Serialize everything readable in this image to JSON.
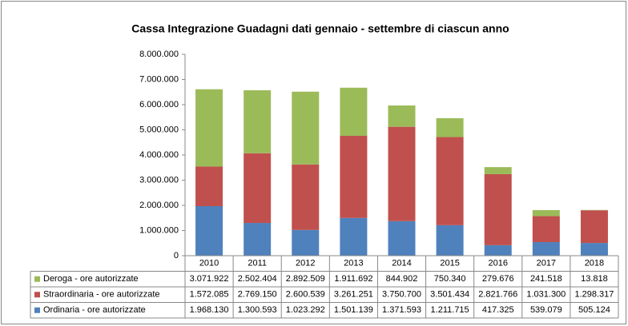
{
  "chart_data": {
    "type": "bar",
    "stacked": true,
    "title": "Cassa Integrazione Guadagni  dati gennaio  - settembre di ciascun anno",
    "categories": [
      "2010",
      "2011",
      "2012",
      "2013",
      "2014",
      "2015",
      "2016",
      "2017",
      "2018"
    ],
    "series": [
      {
        "name": "Ordinaria - ore autorizzate",
        "color": "#4f81bd",
        "values": [
          1968130,
          1300593,
          1023292,
          1501139,
          1371593,
          1211715,
          417325,
          539079,
          505124
        ],
        "value_labels": [
          "1.968.130",
          "1.300.593",
          "1.023.292",
          "1.501.139",
          "1.371.593",
          "1.211.715",
          "417.325",
          "539.079",
          "505.124"
        ]
      },
      {
        "name": "Straordinaria - ore autorizzate",
        "color": "#c0504d",
        "values": [
          1572085,
          2769150,
          2600539,
          3261251,
          3750700,
          3501434,
          2821766,
          1031300,
          1298317
        ],
        "value_labels": [
          "1.572.085",
          "2.769.150",
          "2.600.539",
          "3.261.251",
          "3.750.700",
          "3.501.434",
          "2.821.766",
          "1.031.300",
          "1.298.317"
        ]
      },
      {
        "name": "Deroga - ore autorizzate",
        "color": "#9bbb59",
        "values": [
          3071922,
          2502404,
          2892509,
          1911692,
          844902,
          750340,
          279676,
          241518,
          13818
        ],
        "value_labels": [
          "3.071.922",
          "2.502.404",
          "2.892.509",
          "1.911.692",
          "844.902",
          "750.340",
          "279.676",
          "241.518",
          "13.818"
        ]
      }
    ],
    "ylim": [
      0,
      8000000
    ],
    "yticks": [
      0,
      {
        "value": 1000000,
        "label": "1.000.000"
      },
      {
        "value": 2000000,
        "label": "2.000.000"
      },
      {
        "value": 3000000,
        "label": "3.000.000"
      },
      {
        "value": 4000000,
        "label": "4.000.000"
      },
      {
        "value": 5000000,
        "label": "5.000.000"
      },
      {
        "value": 6000000,
        "label": "6.000.000"
      },
      {
        "value": 7000000,
        "label": "7.000.000"
      },
      {
        "value": 8000000,
        "label": "8.000.000"
      }
    ]
  }
}
